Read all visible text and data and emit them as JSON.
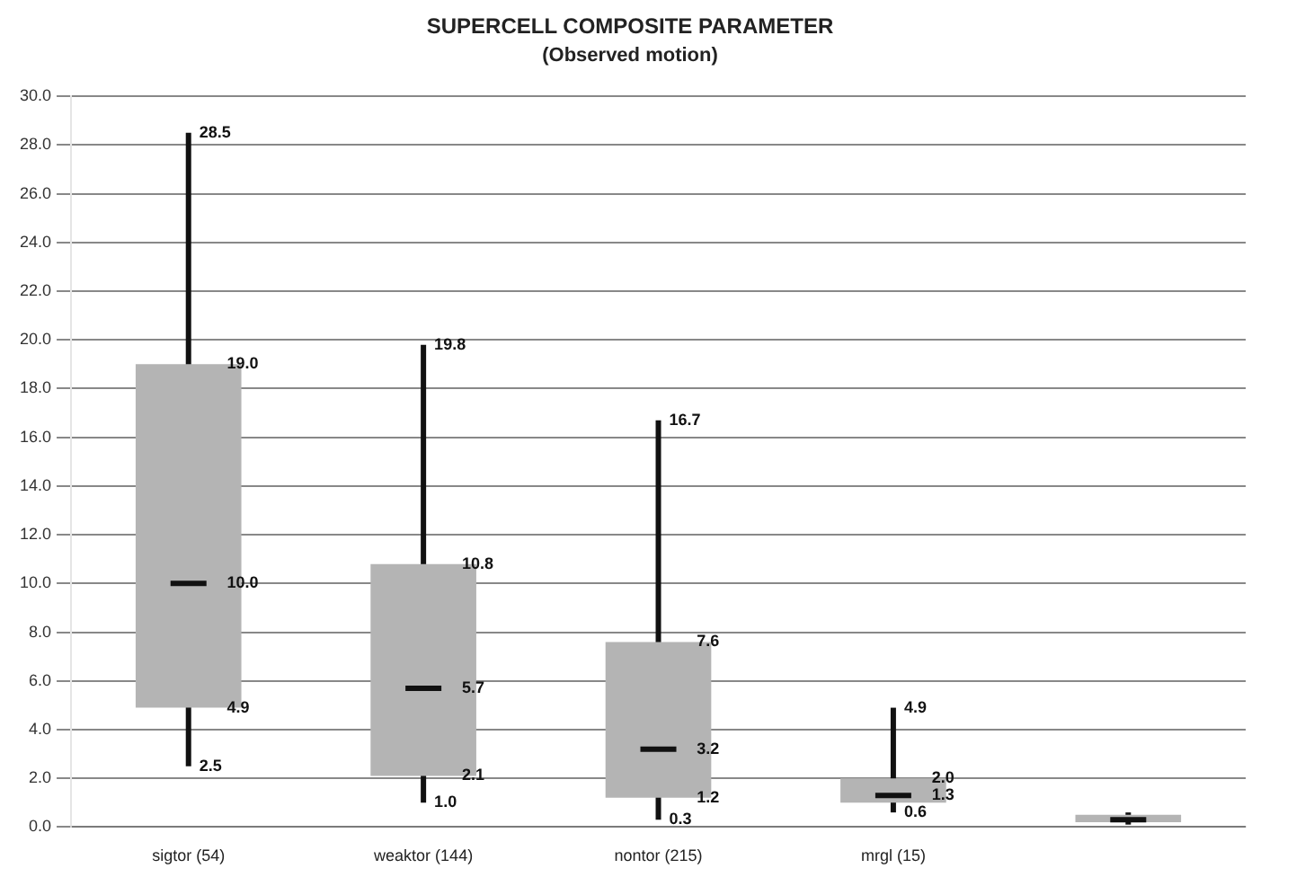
{
  "chart_data": {
    "type": "box",
    "title": "SUPERCELL COMPOSITE PARAMETER",
    "subtitle": "(Observed motion)",
    "categories": [
      "sigtor (54)",
      "weaktor (144)",
      "nontor (215)",
      "mrgl (15)",
      null
    ],
    "series": [
      {
        "color": "#b4b4b4",
        "boxes": [
          {
            "low": 2.5,
            "q1": 4.9,
            "median": 10.0,
            "q3": 19.0,
            "high": 28.5
          },
          {
            "low": 1.0,
            "q1": 2.1,
            "median": 5.7,
            "q3": 10.8,
            "high": 19.8
          },
          {
            "low": 0.3,
            "q1": 1.2,
            "median": 3.2,
            "q3": 7.6,
            "high": 16.7
          },
          {
            "low": 0.6,
            "q1": 1.0,
            "median": 1.3,
            "q3": 2.0,
            "high": 4.9
          },
          {
            "low": 0.1,
            "q1": 0.2,
            "median": 0.3,
            "q3": 0.5,
            "high": 0.6
          }
        ]
      }
    ],
    "ylim": [
      0,
      30
    ],
    "yticks": [
      {
        "value": 0,
        "label": "0.0"
      },
      {
        "value": 2,
        "label": "2.0"
      },
      {
        "value": 4,
        "label": "4.0"
      },
      {
        "value": 6,
        "label": "6.0"
      },
      {
        "value": 8,
        "label": "8.0"
      },
      {
        "value": 10,
        "label": "10.0"
      },
      {
        "value": 12,
        "label": "12.0"
      },
      {
        "value": 14,
        "label": "14.0"
      },
      {
        "value": 16,
        "label": "16.0"
      },
      {
        "value": 18,
        "label": "18.0"
      },
      {
        "value": 20,
        "label": "20.0"
      },
      {
        "value": 22,
        "label": "22.0"
      },
      {
        "value": 24,
        "label": "24.0"
      },
      {
        "value": 26,
        "label": "26.0"
      },
      {
        "value": 28,
        "label": "28.0"
      },
      {
        "value": 30,
        "label": "30.0"
      }
    ],
    "annotations": [
      {
        "text": "28.5",
        "x": "sigtor (54)",
        "y": 28.5
      },
      {
        "text": "19.0",
        "x": "sigtor (54)",
        "y": 19.0
      },
      {
        "text": "10.0",
        "x": "sigtor (54)",
        "y": 10.0
      },
      {
        "text": "4.9",
        "x": "sigtor (54)",
        "y": 4.9
      },
      {
        "text": "2.5",
        "x": "sigtor (54)",
        "y": 2.5
      },
      {
        "text": "19.8",
        "x": "weaktor (144)",
        "y": 19.8
      },
      {
        "text": "10.8",
        "x": "weaktor (144)",
        "y": 10.8
      },
      {
        "text": "5.7",
        "x": "weaktor (144)",
        "y": 5.7
      },
      {
        "text": "2.1",
        "x": "weaktor (144)",
        "y": 2.1
      },
      {
        "text": "1.0",
        "x": "weaktor (144)",
        "y": 1.0
      },
      {
        "text": "16.7",
        "x": "nontor (215)",
        "y": 16.7
      },
      {
        "text": "7.6",
        "x": "nontor (215)",
        "y": 7.6
      },
      {
        "text": "3.2",
        "x": "nontor (215)",
        "y": 3.2
      },
      {
        "text": "1.2",
        "x": "nontor (215)",
        "y": 1.2
      },
      {
        "text": "0.3",
        "x": "nontor (215)",
        "y": 0.3
      },
      {
        "text": "4.9",
        "x": "mrgl (15)",
        "y": 4.9
      },
      {
        "text": "2.0",
        "x": "mrgl (15)",
        "y": 2.0
      },
      {
        "text": "1.3",
        "x": "mrgl (15)",
        "y": 1.3
      },
      {
        "text": "0.6",
        "x": "mrgl (15)",
        "y": 0.6
      }
    ],
    "grid": "y"
  }
}
